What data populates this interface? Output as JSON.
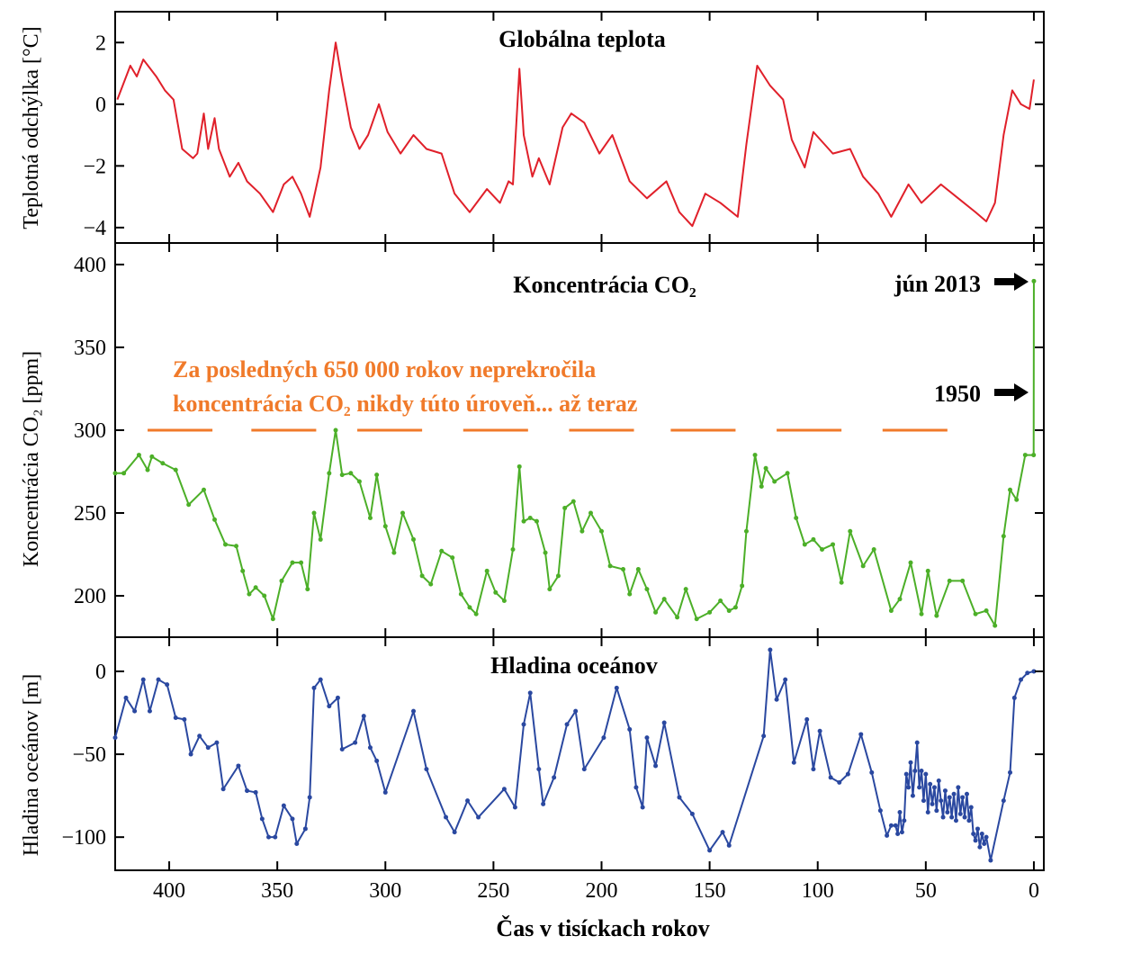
{
  "chart_data": [
    {
      "type": "line",
      "title": "Globálna teplota",
      "ylabel": "Teplotná odchýlka [°C]",
      "xlabel": "Čas v tisíckach rokov",
      "xlim": [
        425,
        -4.6
      ],
      "ylim": [
        -4.5,
        3.0
      ],
      "yticks": [
        2,
        0,
        -2,
        -4
      ],
      "ytick_labels": [
        "2",
        "0",
        "−2",
        "−4"
      ],
      "color": "#e0202a",
      "grid": false,
      "x": [
        424,
        418,
        415,
        412,
        406,
        402,
        398,
        394,
        389,
        387,
        384,
        382,
        379,
        377,
        372,
        368,
        364,
        358,
        352,
        347,
        343,
        339,
        335,
        330,
        326,
        323,
        320,
        316,
        312,
        308,
        303,
        299,
        293,
        287,
        281,
        274,
        268,
        261,
        253,
        247,
        243,
        241,
        238,
        236,
        232,
        229,
        224,
        218,
        214,
        208,
        201,
        195,
        187,
        179,
        170,
        164,
        158,
        152,
        145,
        137,
        133,
        128,
        122,
        116,
        112,
        106,
        102,
        93,
        85,
        79,
        72,
        66,
        58,
        52,
        43,
        35,
        27,
        22,
        18,
        14,
        10,
        6,
        2,
        0
      ],
      "y": [
        0.15,
        1.25,
        0.9,
        1.45,
        0.9,
        0.45,
        0.15,
        -1.45,
        -1.75,
        -1.6,
        -0.3,
        -1.45,
        -0.45,
        -1.45,
        -2.35,
        -1.9,
        -2.5,
        -2.9,
        -3.5,
        -2.6,
        -2.35,
        -2.9,
        -3.65,
        -2.05,
        0.45,
        2.0,
        0.75,
        -0.75,
        -1.45,
        -1.0,
        0,
        -0.9,
        -1.6,
        -1.0,
        -1.45,
        -1.6,
        -2.9,
        -3.5,
        -2.75,
        -3.2,
        -2.5,
        -2.6,
        1.15,
        -1.0,
        -2.35,
        -1.75,
        -2.6,
        -0.75,
        -0.3,
        -0.6,
        -1.6,
        -1.0,
        -2.5,
        -3.05,
        -2.5,
        -3.5,
        -3.95,
        -2.9,
        -3.2,
        -3.65,
        -1.3,
        1.25,
        0.6,
        0.15,
        -1.15,
        -2.05,
        -0.9,
        -1.6,
        -1.45,
        -2.35,
        -2.9,
        -3.65,
        -2.6,
        -3.2,
        -2.6,
        -3.05,
        -3.5,
        -3.8,
        -3.2,
        -1.0,
        0.45,
        0,
        -0.15,
        0.8
      ]
    },
    {
      "type": "line",
      "title": "Koncentrácia CO₂",
      "ylabel": "Koncentrácia CO₂ [ppm]",
      "xlim": [
        425,
        -4.6
      ],
      "ylim": [
        175,
        413
      ],
      "yticks": [
        400,
        350,
        300,
        250,
        200
      ],
      "ytick_labels": [
        "400",
        "350",
        "300",
        "250",
        "200"
      ],
      "color": "#4caf28",
      "markers": true,
      "grid": false,
      "x": [
        425,
        421,
        414,
        410,
        408,
        403,
        397,
        391,
        384,
        379,
        374,
        369,
        366,
        363,
        360,
        356,
        352,
        348,
        343,
        339,
        336,
        333,
        330,
        326,
        323,
        320,
        316,
        312,
        307,
        304,
        300,
        296,
        292,
        287,
        283,
        279,
        274,
        269,
        265,
        261,
        258,
        253,
        249,
        245,
        241,
        238,
        236,
        233,
        230,
        226,
        224,
        220,
        217,
        213,
        209,
        205,
        200,
        196,
        190,
        187,
        183,
        179,
        175,
        171,
        165,
        161,
        156,
        150,
        145,
        141,
        138,
        135,
        133,
        129,
        126,
        124,
        120,
        114,
        110,
        106,
        102,
        98,
        93,
        89,
        85,
        79,
        74,
        66,
        62,
        57,
        52,
        49,
        45,
        39,
        33,
        27,
        22,
        18,
        14,
        11,
        8,
        4,
        0.1,
        0
      ],
      "y": [
        274,
        274,
        285,
        276,
        284,
        280,
        276,
        255,
        264,
        246,
        231,
        230,
        215,
        201,
        205,
        200,
        186,
        209,
        220,
        220,
        204,
        250,
        234,
        274,
        300,
        273,
        274,
        269,
        247,
        273,
        242,
        226,
        250,
        234,
        212,
        207,
        227,
        223,
        201,
        193,
        189,
        215,
        202,
        197,
        228,
        278,
        245,
        247,
        245,
        226,
        204,
        212,
        253,
        257,
        239,
        250,
        239,
        218,
        216,
        201,
        216,
        204,
        190,
        198,
        187,
        204,
        186,
        190,
        197,
        191,
        193,
        206,
        239,
        285,
        266,
        277,
        269,
        274,
        247,
        231,
        234,
        228,
        231,
        208,
        239,
        218,
        228,
        191,
        198,
        220,
        189,
        215,
        188,
        209,
        209,
        189,
        191,
        182,
        236,
        264,
        258,
        285,
        285,
        390
      ],
      "threshold": 300,
      "annotations": {
        "note_line1": "Za posledných 650 000 rokov neprekročila",
        "note_line2": "koncentrácia CO₂ nikdy túto úroveň... až teraz",
        "note_color": "#f07a2a",
        "label_2013": "jún 2013",
        "label_1950": "1950",
        "arrow_icon": "right-arrow"
      }
    },
    {
      "type": "line",
      "title": "Hladina oceánov",
      "ylabel": "Hladina oceánov [m]",
      "xlim": [
        425,
        -4.6
      ],
      "ylim": [
        -120,
        20.6
      ],
      "yticks": [
        0,
        -50,
        -100
      ],
      "ytick_labels": [
        "0",
        "−50",
        "−100"
      ],
      "color": "#2a48a0",
      "markers": true,
      "grid": false,
      "x": [
        425,
        420,
        416,
        412,
        409,
        405,
        401,
        397,
        393,
        390,
        386,
        382,
        378,
        375,
        368,
        364,
        360,
        357,
        354,
        351,
        347,
        343,
        341,
        337,
        335,
        333,
        330,
        326,
        322,
        320,
        314,
        310,
        307,
        304,
        300,
        287,
        281,
        272,
        268,
        262,
        257,
        245,
        240,
        236,
        233,
        229,
        227,
        222,
        216,
        212,
        208,
        199,
        193,
        187,
        184,
        181,
        179,
        175,
        171,
        164,
        158,
        150,
        144,
        141,
        125,
        122,
        119,
        115,
        111,
        105,
        102,
        99,
        94,
        90,
        86,
        80,
        75,
        71,
        68,
        66,
        64,
        63,
        62,
        61,
        60,
        59,
        58,
        57,
        56,
        55,
        54,
        53,
        52,
        51,
        50,
        49,
        48,
        47,
        46,
        45,
        44,
        43,
        42,
        41,
        40,
        39,
        38,
        37,
        36,
        35,
        34,
        33,
        32,
        31,
        30,
        29,
        28,
        27,
        26,
        25,
        24,
        23,
        22,
        20,
        14,
        11,
        9,
        6,
        3,
        0
      ],
      "y": [
        -40,
        -16,
        -24,
        -5,
        -24,
        -5,
        -8,
        -28,
        -29,
        -50,
        -39,
        -46,
        -43,
        -71,
        -57,
        -72,
        -73,
        -89,
        -100,
        -100,
        -81,
        -89,
        -104,
        -95,
        -76,
        -10,
        -5,
        -21,
        -16,
        -47,
        -43,
        -27,
        -46,
        -54,
        -73,
        -24,
        -59,
        -88,
        -97,
        -78,
        -88,
        -71,
        -82,
        -32,
        -13,
        -59,
        -80,
        -64,
        -32,
        -24,
        -59,
        -40,
        -10,
        -35,
        -70,
        -82,
        -40,
        -57,
        -31,
        -76,
        -86,
        -108,
        -97,
        -105,
        -39,
        13,
        -17,
        -5,
        -55,
        -29,
        -59,
        -36,
        -64,
        -67,
        -62,
        -38,
        -61,
        -84,
        -99,
        -93,
        -93,
        -98,
        -85,
        -97,
        -90,
        -62,
        -70,
        -55,
        -75,
        -60,
        -43,
        -70,
        -60,
        -78,
        -62,
        -85,
        -68,
        -80,
        -70,
        -84,
        -66,
        -78,
        -88,
        -72,
        -85,
        -76,
        -88,
        -74,
        -90,
        -70,
        -86,
        -76,
        -88,
        -74,
        -90,
        -82,
        -98,
        -102,
        -95,
        -106,
        -98,
        -104,
        -100,
        -114,
        -78,
        -61,
        -16,
        -5,
        -1,
        0
      ]
    }
  ],
  "xaxis": {
    "label": "Čas v tisíckach rokov",
    "ticks": [
      400,
      350,
      300,
      250,
      200,
      150,
      100,
      50,
      0
    ],
    "tick_labels": [
      "400",
      "350",
      "300",
      "250",
      "200",
      "150",
      "100",
      "50",
      "0"
    ]
  }
}
